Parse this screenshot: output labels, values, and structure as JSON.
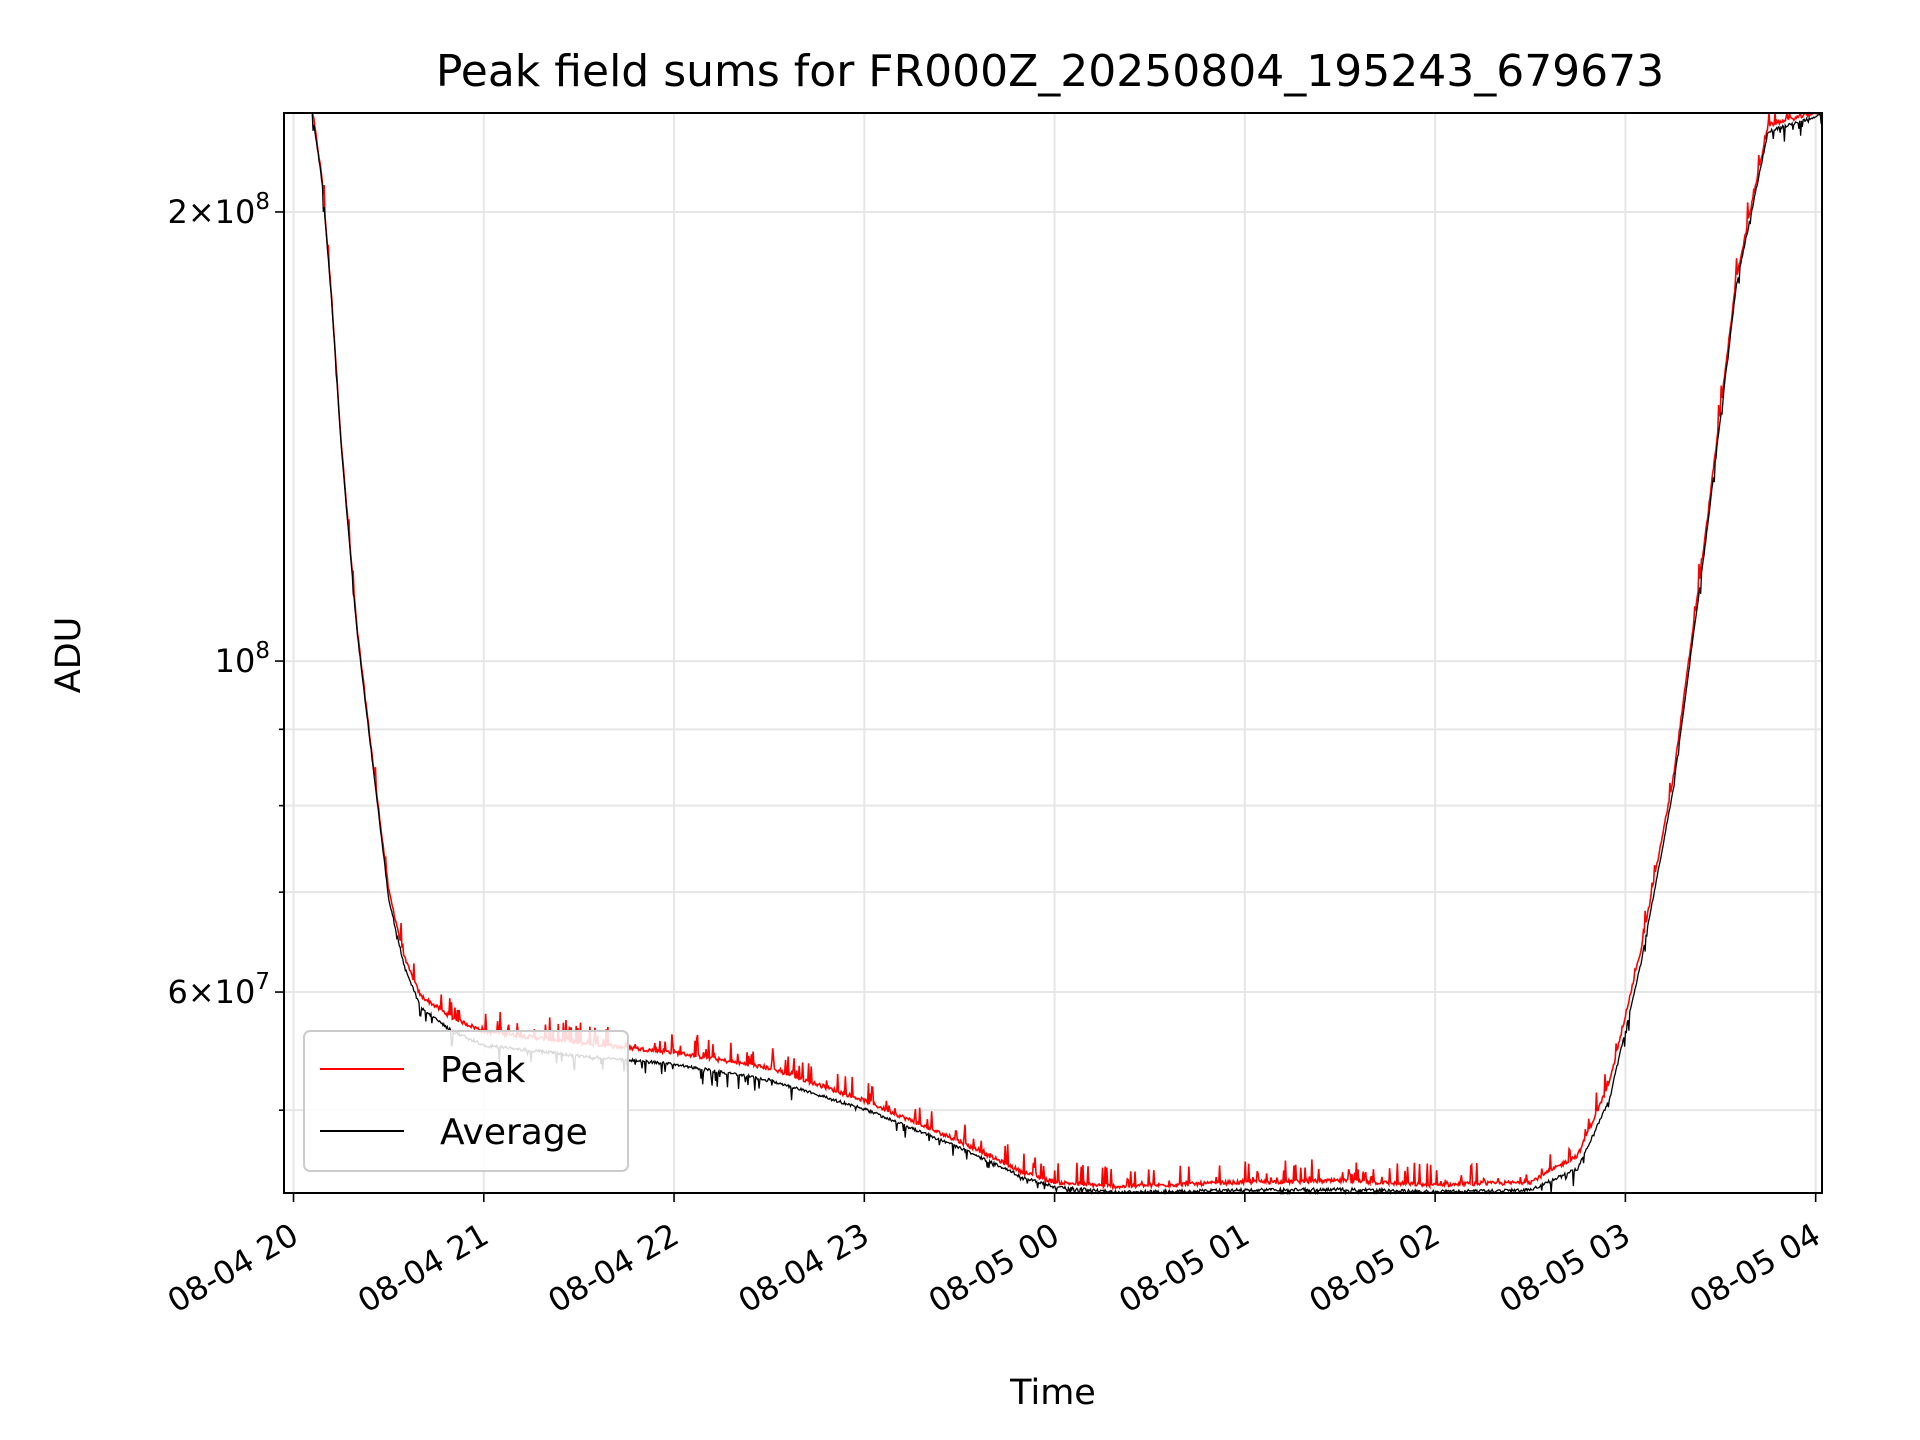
{
  "chart_data": {
    "type": "line",
    "title": "Peak field sums for FR000Z_20250804_195243_679673",
    "xlabel": "Time",
    "ylabel": "ADU",
    "x_axis": {
      "kind": "datetime",
      "range": [
        "2025-08-04 19:57",
        "2025-08-05 04:02"
      ],
      "ticks": [
        {
          "value": "2025-08-04 20:00",
          "label": "08-04 20"
        },
        {
          "value": "2025-08-04 21:00",
          "label": "08-04 21"
        },
        {
          "value": "2025-08-04 22:00",
          "label": "08-04 22"
        },
        {
          "value": "2025-08-04 23:00",
          "label": "08-04 23"
        },
        {
          "value": "2025-08-05 00:00",
          "label": "08-05 00"
        },
        {
          "value": "2025-08-05 01:00",
          "label": "08-05 01"
        },
        {
          "value": "2025-08-05 02:00",
          "label": "08-05 02"
        },
        {
          "value": "2025-08-05 03:00",
          "label": "08-05 03"
        },
        {
          "value": "2025-08-05 04:00",
          "label": "08-05 04"
        }
      ],
      "tick_label_rotation_deg": 30
    },
    "y_axis": {
      "scale": "log",
      "range": [
        44000000,
        233000000
      ],
      "major_ticks": [
        {
          "value": 100000000,
          "mantissa": "",
          "base": "10",
          "exponent": "8"
        },
        {
          "value": 200000000,
          "mantissa": "2",
          "base": "10",
          "exponent": "8"
        },
        {
          "value": 60000000,
          "mantissa": "6",
          "base": "10",
          "exponent": "7"
        }
      ],
      "minor_ticks": [
        50000000,
        70000000,
        80000000,
        90000000
      ]
    },
    "grid": true,
    "legend": {
      "placement": "lower-left"
    },
    "series": [
      {
        "name": "Peak",
        "color": "#ff0000",
        "noise": "spiky-up",
        "points": [
          [
            "2025-08-04 19:57",
            233000000
          ],
          [
            "2025-08-04 20:06",
            233000000
          ],
          [
            "2025-08-04 20:09",
            210000000
          ],
          [
            "2025-08-04 20:12",
            175000000
          ],
          [
            "2025-08-04 20:15",
            140000000
          ],
          [
            "2025-08-04 20:20",
            105000000
          ],
          [
            "2025-08-04 20:26",
            82000000
          ],
          [
            "2025-08-04 20:30",
            70000000
          ],
          [
            "2025-08-04 20:35",
            63000000
          ],
          [
            "2025-08-04 20:40",
            59500000
          ],
          [
            "2025-08-04 20:50",
            57500000
          ],
          [
            "2025-08-04 21:00",
            56300000
          ],
          [
            "2025-08-04 21:30",
            55300000
          ],
          [
            "2025-08-04 22:00",
            54500000
          ],
          [
            "2025-08-04 22:30",
            53200000
          ],
          [
            "2025-08-04 23:00",
            50600000
          ],
          [
            "2025-08-04 23:30",
            47500000
          ],
          [
            "2025-08-04 23:50",
            45300000
          ],
          [
            "2025-08-05 00:00",
            44600000
          ],
          [
            "2025-08-05 00:20",
            44300000
          ],
          [
            "2025-08-05 01:00",
            44600000
          ],
          [
            "2025-08-05 01:30",
            44700000
          ],
          [
            "2025-08-05 02:00",
            44400000
          ],
          [
            "2025-08-05 02:30",
            44600000
          ],
          [
            "2025-08-05 02:45",
            46500000
          ],
          [
            "2025-08-05 02:55",
            52000000
          ],
          [
            "2025-08-05 03:05",
            64000000
          ],
          [
            "2025-08-05 03:15",
            83000000
          ],
          [
            "2025-08-05 03:25",
            120000000
          ],
          [
            "2025-08-05 03:35",
            180000000
          ],
          [
            "2025-08-05 03:45",
            228000000
          ],
          [
            "2025-08-05 04:02",
            233000000
          ]
        ]
      },
      {
        "name": "Average",
        "color": "#000000",
        "noise": "spiky-down",
        "points": [
          [
            "2025-08-04 19:57",
            233000000
          ],
          [
            "2025-08-04 20:06",
            233000000
          ],
          [
            "2025-08-04 20:09",
            210000000
          ],
          [
            "2025-08-04 20:12",
            175000000
          ],
          [
            "2025-08-04 20:15",
            140000000
          ],
          [
            "2025-08-04 20:20",
            105000000
          ],
          [
            "2025-08-04 20:26",
            82000000
          ],
          [
            "2025-08-04 20:30",
            69500000
          ],
          [
            "2025-08-04 20:35",
            62500000
          ],
          [
            "2025-08-04 20:40",
            58800000
          ],
          [
            "2025-08-04 20:50",
            56600000
          ],
          [
            "2025-08-04 21:00",
            55400000
          ],
          [
            "2025-08-04 21:30",
            54500000
          ],
          [
            "2025-08-04 22:00",
            53800000
          ],
          [
            "2025-08-04 22:30",
            52500000
          ],
          [
            "2025-08-04 23:00",
            50200000
          ],
          [
            "2025-08-04 23:30",
            47300000
          ],
          [
            "2025-08-04 23:50",
            45200000
          ],
          [
            "2025-08-05 00:00",
            44500000
          ],
          [
            "2025-08-05 00:20",
            44150000
          ],
          [
            "2025-08-05 01:00",
            44300000
          ],
          [
            "2025-08-05 01:30",
            44350000
          ],
          [
            "2025-08-05 02:00",
            44200000
          ],
          [
            "2025-08-05 02:30",
            44300000
          ],
          [
            "2025-08-05 02:45",
            45800000
          ],
          [
            "2025-08-05 02:55",
            51000000
          ],
          [
            "2025-08-05 03:05",
            63000000
          ],
          [
            "2025-08-05 03:15",
            82000000
          ],
          [
            "2025-08-05 03:25",
            119000000
          ],
          [
            "2025-08-05 03:35",
            179000000
          ],
          [
            "2025-08-05 03:45",
            227000000
          ],
          [
            "2025-08-05 04:02",
            233000000
          ]
        ]
      }
    ]
  }
}
